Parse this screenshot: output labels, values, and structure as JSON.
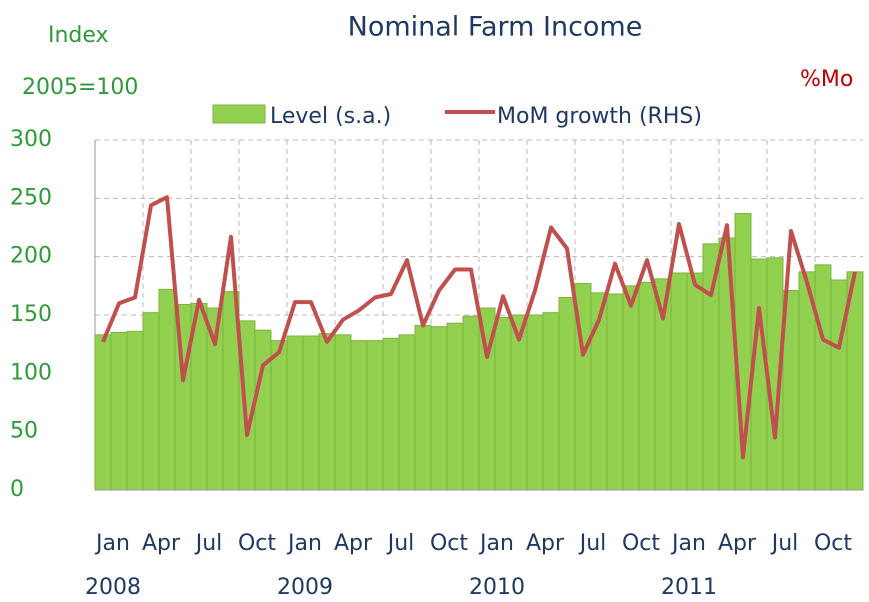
{
  "chart_data": {
    "type": "bar",
    "title": "Nominal Farm Income",
    "y_label": "Index",
    "y_sublabel": "2005=100",
    "y2_label": "%Mo",
    "categories": [
      "Jan",
      null,
      null,
      "Apr",
      null,
      null,
      "Jul",
      null,
      null,
      "Oct",
      null,
      null,
      "Jan",
      null,
      null,
      "Apr",
      null,
      null,
      "Jul",
      null,
      null,
      "Oct",
      null,
      null,
      "Jan",
      null,
      null,
      "Apr",
      null,
      null,
      "Jul",
      null,
      null,
      "Oct",
      null,
      null,
      "Jan",
      null,
      null,
      "Apr",
      null,
      null,
      "Jul",
      null,
      null,
      "Oct",
      null,
      null
    ],
    "years": [
      "2008",
      "2009",
      "2010",
      "2011"
    ],
    "series": [
      {
        "name": "Level (s.a.)",
        "type": "bar",
        "color": "#92d050",
        "values": [
          133,
          135,
          136,
          152,
          172,
          159,
          160,
          156,
          170,
          145,
          137,
          128,
          132,
          132,
          134,
          133,
          128,
          128,
          130,
          133,
          141,
          140,
          143,
          149,
          156,
          148,
          150,
          150,
          152,
          165,
          177,
          169,
          168,
          175,
          178,
          181,
          186,
          186,
          211,
          216,
          237,
          198,
          199,
          171,
          187,
          193,
          180,
          187
        ]
      },
      {
        "name": "MoM growth (RHS)",
        "type": "line",
        "color": "#c0504d",
        "values": [
          127,
          160,
          165,
          244,
          251,
          94,
          163,
          125,
          217,
          47,
          107,
          118,
          161,
          161,
          127,
          146,
          154,
          165,
          168,
          197,
          141,
          171,
          189,
          189,
          114,
          166,
          129,
          171,
          225,
          207,
          116,
          146,
          194,
          158,
          197,
          147,
          228,
          176,
          167,
          227,
          28,
          156,
          45,
          222,
          178,
          129,
          122,
          187
        ]
      }
    ],
    "ylim": [
      0,
      300
    ],
    "yticks": [
      0,
      50,
      100,
      150,
      200,
      250,
      300
    ],
    "grid": true
  }
}
